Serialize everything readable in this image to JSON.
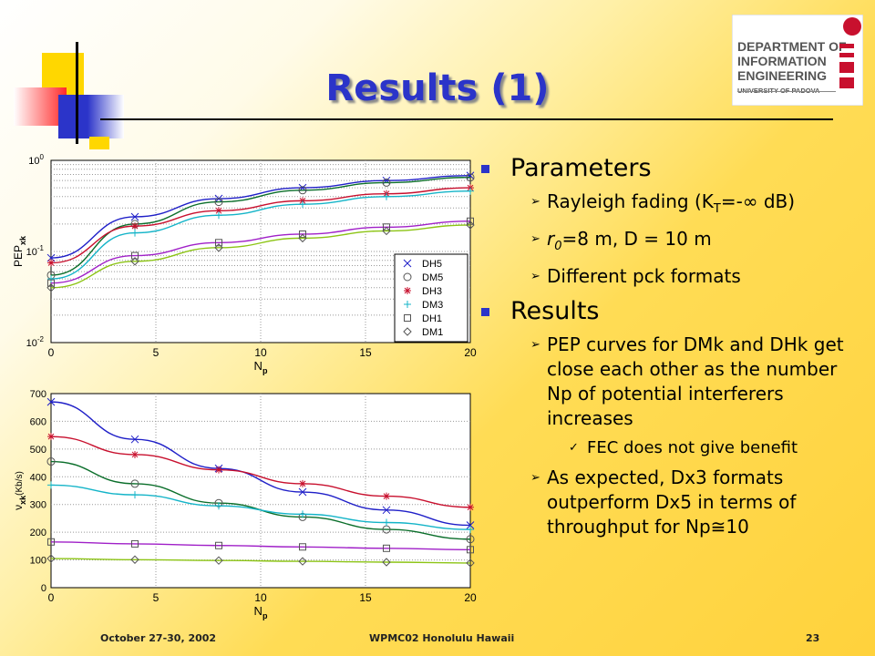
{
  "title": "Results (1)",
  "logo": {
    "lines": [
      "DEPARTMENT OF",
      "INFORMATION",
      "ENGINEERING",
      "UNIVERSITY OF PADOVA"
    ]
  },
  "bullets": {
    "parameters": {
      "heading": "Parameters",
      "items": [
        "Rayleigh fading (K",
        "r",
        "Different pck formats"
      ],
      "item1_sub": "T",
      "item1_tail": "=-∞ dB)",
      "item2_sub": "0",
      "item2_tail": "=8 m, D = 10 m"
    },
    "results": {
      "heading": "Results",
      "item1": "PEP curves for DMk and DHk get close each other as the number Np of potential interferers increases",
      "item1_sub": "FEC does not give benefit",
      "item2": "As expected, Dx3 formats outperform Dx5 in terms of throughput for Np≅10"
    }
  },
  "footer": {
    "date": "October 27-30, 2002",
    "conference": "WPMC02 Honolulu Hawaii",
    "page": "23"
  },
  "colors": {
    "title": "#2b34c9",
    "DH5": "#1f1fc8",
    "DM5": "#0a6e2a",
    "DH3": "#c8102e",
    "DM3": "#14b4c8",
    "DH1": "#a020c8",
    "DM1": "#8cc414"
  },
  "chart_data": [
    {
      "type": "line",
      "xlabel": "N",
      "xlabel_sub": "p",
      "ylabel": "PEP",
      "ylabel_sub": "xk",
      "yscale": "log",
      "xlim": [
        0,
        20
      ],
      "ylim": [
        0.01,
        1
      ],
      "xticks": [
        "0",
        "5",
        "10",
        "15",
        "20"
      ],
      "yticks": [
        "10-2",
        "10-1",
        "100"
      ],
      "grid": true,
      "legend": "right",
      "x": [
        0,
        4,
        8,
        12,
        16,
        20
      ],
      "series": [
        {
          "name": "DH5",
          "marker": "x",
          "values": [
            0.085,
            0.24,
            0.38,
            0.5,
            0.6,
            0.68
          ]
        },
        {
          "name": "DM5",
          "marker": "o",
          "values": [
            0.055,
            0.2,
            0.35,
            0.47,
            0.57,
            0.65
          ]
        },
        {
          "name": "DH3",
          "marker": "*",
          "values": [
            0.075,
            0.19,
            0.28,
            0.36,
            0.43,
            0.5
          ]
        },
        {
          "name": "DM3",
          "marker": "+",
          "values": [
            0.05,
            0.16,
            0.25,
            0.33,
            0.4,
            0.46
          ]
        },
        {
          "name": "DH1",
          "marker": "s",
          "values": [
            0.045,
            0.09,
            0.125,
            0.155,
            0.185,
            0.215
          ]
        },
        {
          "name": "DM1",
          "marker": "d",
          "values": [
            0.04,
            0.078,
            0.11,
            0.14,
            0.168,
            0.195
          ]
        }
      ]
    },
    {
      "type": "line",
      "xlabel": "N",
      "xlabel_sub": "p",
      "ylabel": "ν",
      "ylabel_sub": "xk",
      "ylabel_tail": "(Kb/s)",
      "xlim": [
        0,
        20
      ],
      "ylim": [
        0,
        700
      ],
      "xticks": [
        "0",
        "5",
        "10",
        "15",
        "20"
      ],
      "yticks": [
        "0",
        "100",
        "200",
        "300",
        "400",
        "500",
        "600",
        "700"
      ],
      "grid": true,
      "x": [
        0,
        4,
        8,
        12,
        16,
        20
      ],
      "series": [
        {
          "name": "DH5",
          "marker": "x",
          "values": [
            670,
            535,
            430,
            345,
            280,
            225
          ]
        },
        {
          "name": "DM5",
          "marker": "o",
          "values": [
            455,
            375,
            305,
            255,
            210,
            175
          ]
        },
        {
          "name": "DH3",
          "marker": "*",
          "values": [
            545,
            480,
            425,
            375,
            330,
            290
          ]
        },
        {
          "name": "DM3",
          "marker": "+",
          "values": [
            370,
            335,
            295,
            265,
            235,
            210
          ]
        },
        {
          "name": "DH1",
          "marker": "s",
          "values": [
            165,
            158,
            152,
            147,
            142,
            137
          ]
        },
        {
          "name": "DM1",
          "marker": "d",
          "values": [
            105,
            101,
            98,
            95,
            92,
            89
          ]
        }
      ]
    }
  ]
}
